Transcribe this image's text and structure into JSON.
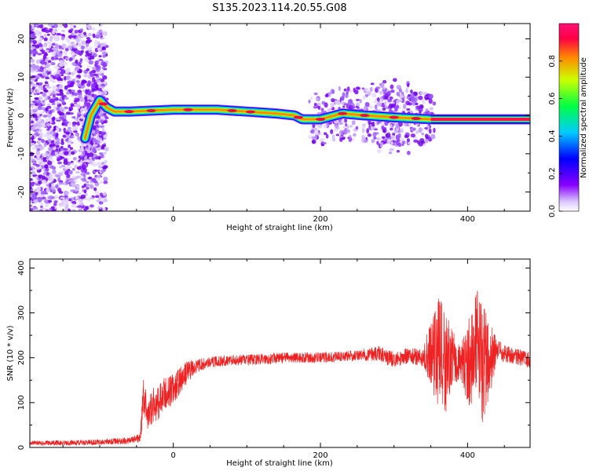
{
  "title": "S135.2023.114.20.55.G08",
  "chart_data": [
    {
      "type": "heatmap",
      "title": "S135.2023.114.20.55.G08",
      "xlabel": "Height of straight line (km)",
      "ylabel": "Frequency (Hz)",
      "xlim": [
        -195,
        485
      ],
      "ylim": [
        -25,
        24
      ],
      "xticks": [
        0,
        200,
        400
      ],
      "yticks": [
        -20,
        -10,
        0,
        10,
        20
      ],
      "grid": false,
      "ridge": [
        {
          "x": -120,
          "y": -6
        },
        {
          "x": -112,
          "y": 0
        },
        {
          "x": -100,
          "y": 4
        },
        {
          "x": -90,
          "y": 2
        },
        {
          "x": -80,
          "y": 1
        },
        {
          "x": -60,
          "y": 1
        },
        {
          "x": 0,
          "y": 1.5
        },
        {
          "x": 60,
          "y": 1.5
        },
        {
          "x": 100,
          "y": 1
        },
        {
          "x": 140,
          "y": 0.5
        },
        {
          "x": 165,
          "y": 0
        },
        {
          "x": 175,
          "y": -1
        },
        {
          "x": 200,
          "y": -1
        },
        {
          "x": 230,
          "y": 0.5
        },
        {
          "x": 260,
          "y": 0
        },
        {
          "x": 300,
          "y": -0.5
        },
        {
          "x": 350,
          "y": -1
        },
        {
          "x": 485,
          "y": -1
        }
      ],
      "colorbar": {
        "label": "Normalized spectral amplitude",
        "ticks": [
          "0.0",
          "0.2",
          "0.4",
          "0.6",
          "0.8"
        ],
        "range": [
          0,
          1
        ],
        "colors": [
          "#ffffff",
          "#8800ff",
          "#0000ff",
          "#00ccff",
          "#00ff44",
          "#ccff00",
          "#ff8800",
          "#ff0044",
          "#ff1177"
        ]
      }
    },
    {
      "type": "line",
      "xlabel": "Height of straight line (km)",
      "ylabel": "SNR (10 * v/v)",
      "xlim": [
        -195,
        485
      ],
      "ylim": [
        0,
        420
      ],
      "xticks": [
        0,
        200,
        400
      ],
      "yticks": [
        0,
        100,
        200,
        300,
        400
      ],
      "grid": false,
      "color": "#ee2222",
      "series": [
        {
          "x": [
            -195,
            -150,
            -100,
            -60,
            -45,
            -40,
            -35,
            -30,
            -20,
            -10,
            0,
            10,
            20,
            30,
            50,
            80,
            100,
            150,
            200,
            250,
            280,
            300,
            320,
            340,
            350,
            360,
            370,
            380,
            390,
            400,
            410,
            420,
            430,
            440,
            460,
            485
          ],
          "mean": [
            10,
            10,
            12,
            15,
            20,
            120,
            60,
            90,
            100,
            120,
            130,
            150,
            170,
            180,
            190,
            195,
            195,
            200,
            200,
            205,
            210,
            195,
            205,
            200,
            215,
            210,
            190,
            200,
            185,
            190,
            210,
            205,
            190,
            215,
            205,
            195
          ],
          "spread": [
            5,
            6,
            6,
            8,
            10,
            50,
            30,
            40,
            40,
            40,
            35,
            30,
            25,
            15,
            12,
            12,
            12,
            12,
            12,
            12,
            18,
            18,
            18,
            20,
            80,
            130,
            120,
            60,
            40,
            90,
            140,
            150,
            90,
            25,
            18,
            18
          ]
        }
      ]
    }
  ]
}
